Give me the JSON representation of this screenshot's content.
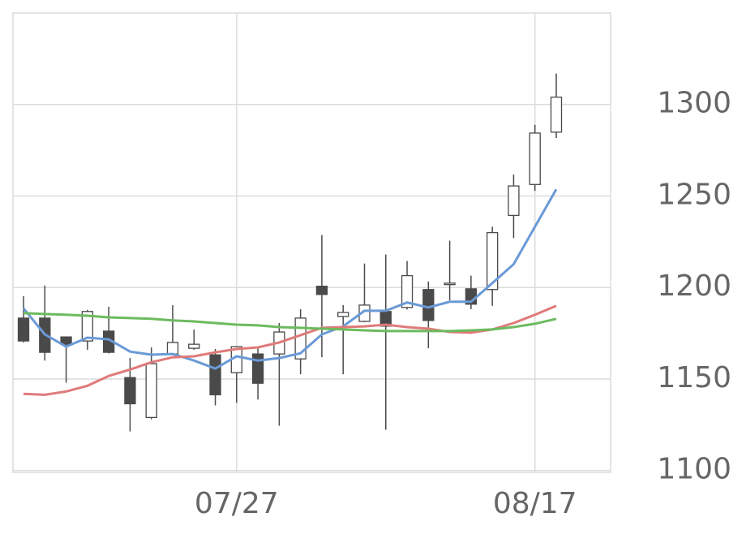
{
  "chart_data": {
    "type": "candlestick",
    "categories": [
      null,
      null,
      null,
      null,
      null,
      null,
      null,
      null,
      null,
      null,
      "07/27",
      null,
      null,
      null,
      null,
      null,
      null,
      null,
      null,
      null,
      null,
      null,
      null,
      null,
      "08/17",
      null
    ],
    "open": [
      1183.3,
      1183.3,
      1173,
      1170.8,
      1176.2,
      1150.8,
      1129,
      1163.7,
      1166.8,
      1163.2,
      1153.5,
      1163.7,
      1163.7,
      1161,
      1200.7,
      1184.2,
      1181.5,
      1186.9,
      1189.1,
      1198.9,
      1201.6,
      1199.3,
      1198.9,
      1239.4,
      1256.3,
      1284.9
    ],
    "high": [
      1195.3,
      1201.1,
      1173,
      1187.8,
      1189.5,
      1161.5,
      1167.3,
      1190.4,
      1177,
      1166.4,
      1168,
      1166.8,
      1180.6,
      1188.2,
      1228.7,
      1190.4,
      1213.1,
      1218,
      1214.5,
      1203.3,
      1225.6,
      1206.5,
      1233.2,
      1261.7,
      1288.9,
      1316.9
    ],
    "low": [
      1170,
      1160.1,
      1148,
      1166,
      1164,
      1121.4,
      1128,
      1163,
      1166,
      1135.6,
      1137,
      1138.8,
      1124.5,
      1152.6,
      1161.9,
      1152.6,
      1181,
      1122.3,
      1188,
      1166.8,
      1193,
      1188.2,
      1190,
      1227,
      1252.8,
      1281.7
    ],
    "close": [
      1170.8,
      1164.6,
      1169,
      1186.9,
      1164.6,
      1136.5,
      1158.4,
      1170,
      1169,
      1141.4,
      1167.7,
      1147.7,
      1175.7,
      1183.3,
      1196.2,
      1186.4,
      1190.4,
      1178.9,
      1206.5,
      1182,
      1202.4,
      1190.9,
      1230,
      1255.5,
      1284.4,
      1304
    ],
    "up_color": "#ffffff",
    "down_color": "#4a4a4a",
    "lines": [
      {
        "color": "#6a9ad6",
        "values": [
          1188.6,
          1174.4,
          1167.7,
          1172.6,
          1171.7,
          1165,
          1163.3,
          1163.7,
          1160.1,
          1155.7,
          1162.4,
          1160.1,
          1161.5,
          1164.1,
          1174.4,
          1178.8,
          1187.3,
          1187.3,
          1191.8,
          1189.1,
          1192.2,
          1192.2,
          1202.4,
          1212.7,
          1233.2,
          1253.7
        ]
      },
      {
        "color": "#e07a7a",
        "values": [
          1141.9,
          1141.4,
          1143.2,
          1146.3,
          1151.7,
          1155.2,
          1159.2,
          1161.9,
          1162.4,
          1164.6,
          1166.4,
          1167.3,
          1170,
          1174,
          1178,
          1178.4,
          1178.8,
          1179.7,
          1178.4,
          1177.5,
          1175.7,
          1175.3,
          1177.1,
          1180.6,
          1185.1,
          1190
        ]
      },
      {
        "color": "#6cbb5e",
        "values": [
          1186,
          1185.5,
          1185.1,
          1184.6,
          1183.7,
          1183.3,
          1182.9,
          1182,
          1181.5,
          1180.6,
          1179.7,
          1179.3,
          1178.4,
          1178,
          1177.5,
          1177.1,
          1176.6,
          1176.2,
          1176.2,
          1176.2,
          1176.2,
          1176.6,
          1177.1,
          1178.4,
          1180.2,
          1182.9
        ]
      }
    ],
    "ylim": [
      1099,
      1350
    ],
    "yticks": [
      1100,
      1150,
      1200,
      1250,
      1300
    ],
    "grid": true
  }
}
